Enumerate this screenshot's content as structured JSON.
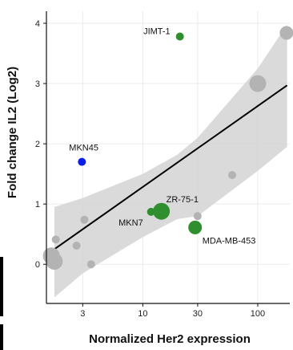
{
  "chart_data": {
    "type": "scatter",
    "title": "",
    "xlabel": "Normalized Her2 expression",
    "ylabel": "Fold change IL2 (Log2)",
    "x_scale": "log",
    "xlim": [
      1.45,
      190
    ],
    "ylim": [
      -0.65,
      4.2
    ],
    "x_ticks": [
      {
        "value": 3,
        "label": "3"
      },
      {
        "value": 10,
        "label": "10"
      },
      {
        "value": 30,
        "label": "30"
      },
      {
        "value": 100,
        "label": "100"
      }
    ],
    "y_ticks": [
      {
        "value": 0,
        "label": "0"
      },
      {
        "value": 1,
        "label": "1"
      },
      {
        "value": 2,
        "label": "2"
      },
      {
        "value": 3,
        "label": "3"
      },
      {
        "value": 4,
        "label": "4"
      }
    ],
    "grid": true,
    "legend": "none",
    "colors": {
      "background": "#ffffff",
      "grid": "#ebebeb",
      "ribbon": "#d3d3d3",
      "trend": "#000000",
      "gray_point": "#b3b3b3",
      "green_point": "#2f8f2f",
      "blue_point": "#0c1ee6"
    },
    "trend_line": {
      "x": [
        1.7,
        180
      ],
      "y": [
        0.25,
        2.97
      ]
    },
    "confidence_band": {
      "x": [
        1.7,
        3,
        10,
        20,
        30,
        100,
        180
      ],
      "upper": [
        0.95,
        1.1,
        1.5,
        1.82,
        2.1,
        3.25,
        3.98
      ],
      "lower": [
        -0.55,
        -0.15,
        0.45,
        0.75,
        0.8,
        1.55,
        1.95
      ]
    },
    "points": [
      {
        "x": 1.6,
        "y": 0.14,
        "size": 3,
        "group": "gray",
        "label": ""
      },
      {
        "x": 1.7,
        "y": 0.05,
        "size": 3,
        "group": "gray",
        "label": ""
      },
      {
        "x": 1.75,
        "y": 0.41,
        "size": 1,
        "group": "gray",
        "label": ""
      },
      {
        "x": 2.65,
        "y": 0.31,
        "size": 1,
        "group": "gray",
        "label": ""
      },
      {
        "x": 3.1,
        "y": 0.74,
        "size": 1,
        "group": "gray",
        "label": ""
      },
      {
        "x": 3.55,
        "y": 0.0,
        "size": 1,
        "group": "gray",
        "label": ""
      },
      {
        "x": 2.95,
        "y": 1.7,
        "size": 1,
        "group": "blue",
        "label": "MKN45"
      },
      {
        "x": 11.8,
        "y": 0.87,
        "size": 1,
        "group": "green",
        "label": "MKN7"
      },
      {
        "x": 14.5,
        "y": 0.88,
        "size": 3,
        "group": "green",
        "label": "ZR-75-1"
      },
      {
        "x": 28.5,
        "y": 0.61,
        "size": 2,
        "group": "green",
        "label": "MDA-MB-453"
      },
      {
        "x": 30,
        "y": 0.8,
        "size": 1,
        "group": "gray",
        "label": ""
      },
      {
        "x": 21,
        "y": 3.78,
        "size": 1,
        "group": "green",
        "label": "JIMT-1"
      },
      {
        "x": 60,
        "y": 1.48,
        "size": 1,
        "group": "gray",
        "label": ""
      },
      {
        "x": 100,
        "y": 3.0,
        "size": 3,
        "group": "gray",
        "label": ""
      },
      {
        "x": 178,
        "y": 3.84,
        "size": 2,
        "group": "gray",
        "label": ""
      }
    ]
  }
}
